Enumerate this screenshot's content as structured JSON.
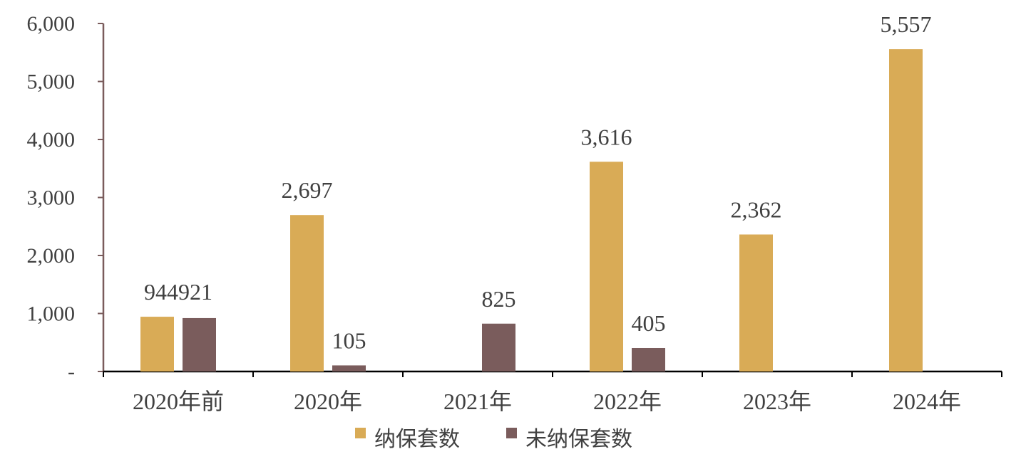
{
  "chart_data": {
    "type": "bar",
    "categories": [
      "2020年前",
      "2020年",
      "2021年",
      "2022年",
      "2023年",
      "2024年"
    ],
    "series": [
      {
        "name": "纳保套数",
        "color": "#D9AB56",
        "values": [
          944,
          2697,
          null,
          3616,
          2362,
          5557
        ],
        "labels": [
          "",
          "2,697",
          "",
          "3,616",
          "2,362",
          "5,557"
        ]
      },
      {
        "name": "未纳保套数",
        "color": "#7A5C5C",
        "values": [
          921,
          105,
          825,
          405,
          null,
          null
        ],
        "labels": [
          "",
          "105",
          "825",
          "405",
          "",
          ""
        ]
      }
    ],
    "combined_labels": [
      "944921",
      "",
      "",
      "",
      "",
      ""
    ],
    "ylim": [
      0,
      6000
    ],
    "yticks": [
      {
        "value": 0,
        "label": "-"
      },
      {
        "value": 1000,
        "label": "1,000"
      },
      {
        "value": 2000,
        "label": "2,000"
      },
      {
        "value": 3000,
        "label": "3,000"
      },
      {
        "value": 4000,
        "label": "4,000"
      },
      {
        "value": 5000,
        "label": "5,000"
      },
      {
        "value": 6000,
        "label": "6,000"
      }
    ],
    "grid": false,
    "legend_position": "bottom-center",
    "axis_color": "#7A5C5C",
    "text_color": "#404040"
  }
}
